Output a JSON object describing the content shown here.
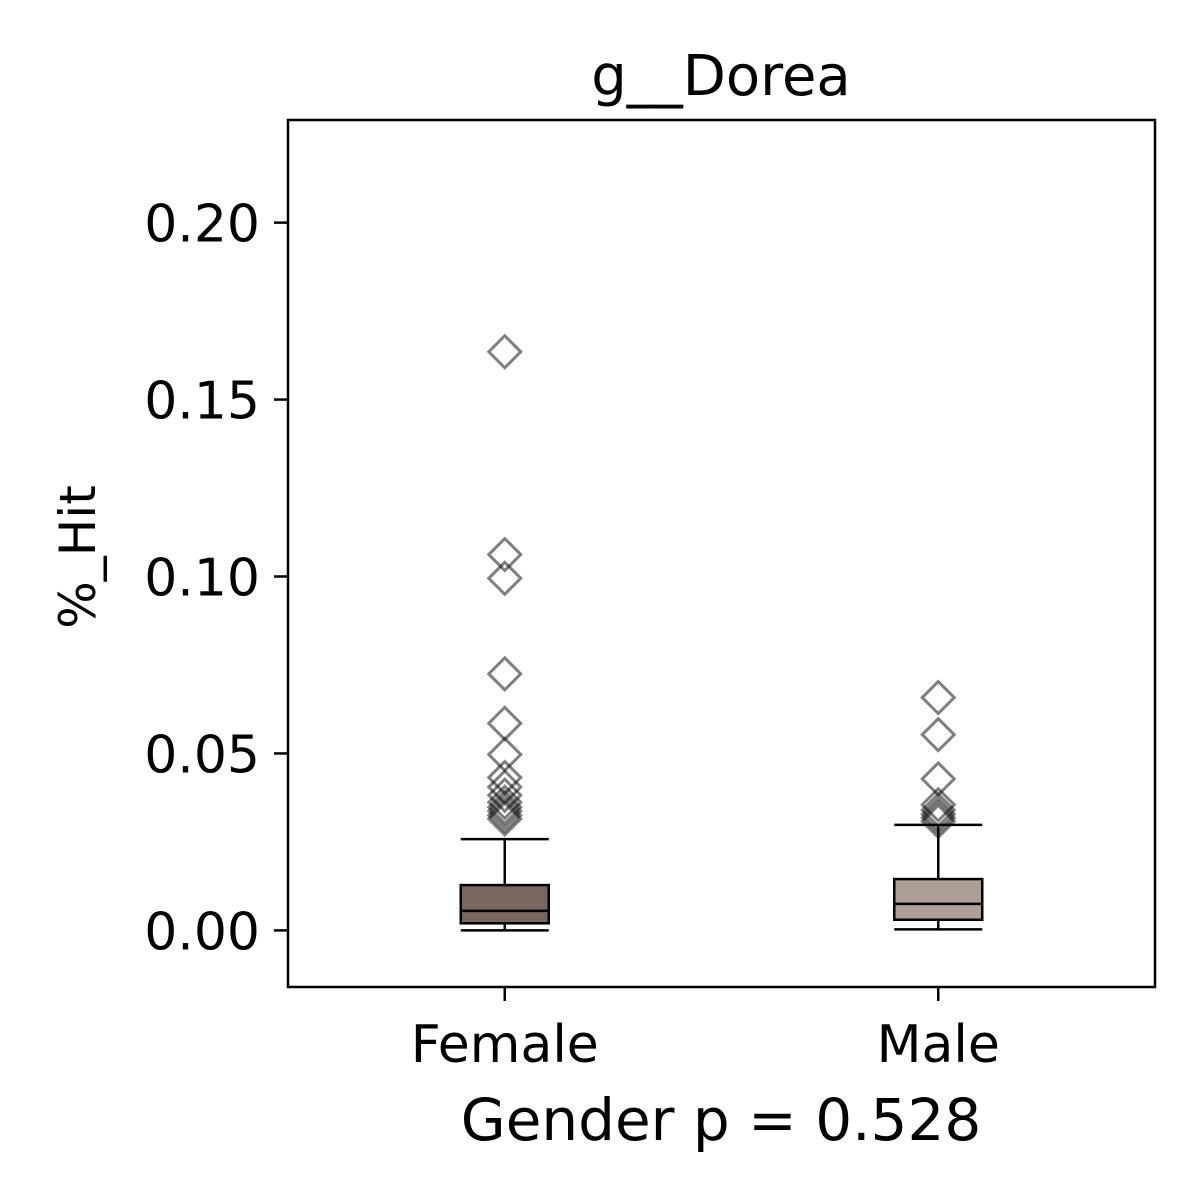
{
  "chart_data": {
    "type": "box",
    "title": "g__Dorea",
    "xlabel": "Gender p = 0.528",
    "ylabel": "%_Hit",
    "categories": [
      "Female",
      "Male"
    ],
    "ylim": [
      -0.016,
      0.229
    ],
    "yticks": [
      {
        "value": 0.0,
        "label": "0.00"
      },
      {
        "value": 0.05,
        "label": "0.05"
      },
      {
        "value": 0.1,
        "label": "0.10"
      },
      {
        "value": 0.15,
        "label": "0.15"
      },
      {
        "value": 0.2,
        "label": "0.20"
      }
    ],
    "grid": false,
    "series": [
      {
        "category": "Female",
        "whisker_low": 0.0,
        "q1": 0.002,
        "median": 0.0055,
        "q3": 0.0128,
        "whisker_high": 0.0258,
        "outliers": [
          0.1635,
          0.1062,
          0.0995,
          0.0725,
          0.0585,
          0.0497,
          0.0432,
          0.0405,
          0.0382,
          0.0362,
          0.0348,
          0.0337,
          0.0325,
          0.0315
        ],
        "color": "#786660"
      },
      {
        "category": "Male",
        "whisker_low": 0.0003,
        "q1": 0.003,
        "median": 0.0075,
        "q3": 0.0145,
        "whisker_high": 0.0298,
        "outliers": [
          0.0658,
          0.0553,
          0.0428,
          0.0355,
          0.034,
          0.0328,
          0.0318,
          0.0308
        ],
        "color": "#ad9f98"
      }
    ]
  }
}
